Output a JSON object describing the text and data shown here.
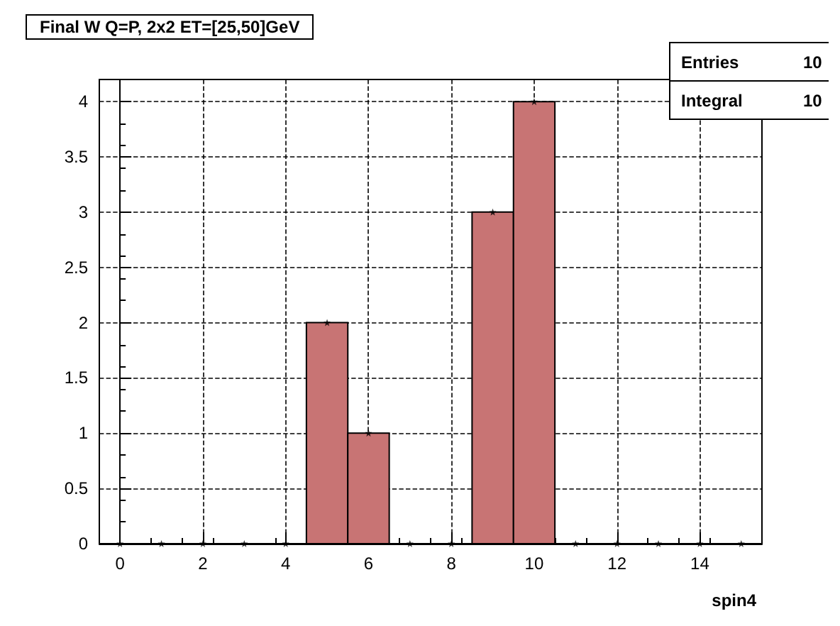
{
  "chart_data": {
    "type": "histogram",
    "title": "Final W Q=P, 2x2 ET=[25,50]GeV",
    "xlabel": "spin4",
    "bins": [
      -0.5,
      0.5,
      1.5,
      2.5,
      3.5,
      4.5,
      5.5,
      6.5,
      7.5,
      8.5,
      9.5,
      10.5,
      11.5,
      12.5,
      13.5,
      14.5,
      15.5
    ],
    "values": [
      0,
      0,
      0,
      0,
      0,
      2,
      1,
      0,
      0,
      3,
      4,
      0,
      0,
      0,
      0,
      0
    ],
    "color": "#c87474",
    "marker": "star",
    "series": [
      {
        "type": "scatter",
        "color": "#000000",
        "x": [
          0,
          1,
          2,
          3,
          4,
          5,
          6,
          7,
          8,
          9,
          10,
          11,
          12,
          13,
          14,
          15
        ],
        "values": [
          0,
          0,
          0,
          0,
          0,
          2,
          1,
          0,
          0,
          3,
          4,
          0,
          0,
          0,
          0,
          0
        ]
      }
    ],
    "xlim": [
      -0.5,
      15.5
    ],
    "xticks": [
      0,
      2,
      4,
      6,
      8,
      10,
      12,
      14
    ],
    "ylim": [
      0,
      4.2
    ],
    "yticks": [
      0,
      0.5,
      1,
      1.5,
      2,
      2.5,
      3,
      3.5,
      4
    ],
    "grid": true,
    "annotations": [
      "Entries",
      "10",
      "Integral",
      "10"
    ]
  }
}
